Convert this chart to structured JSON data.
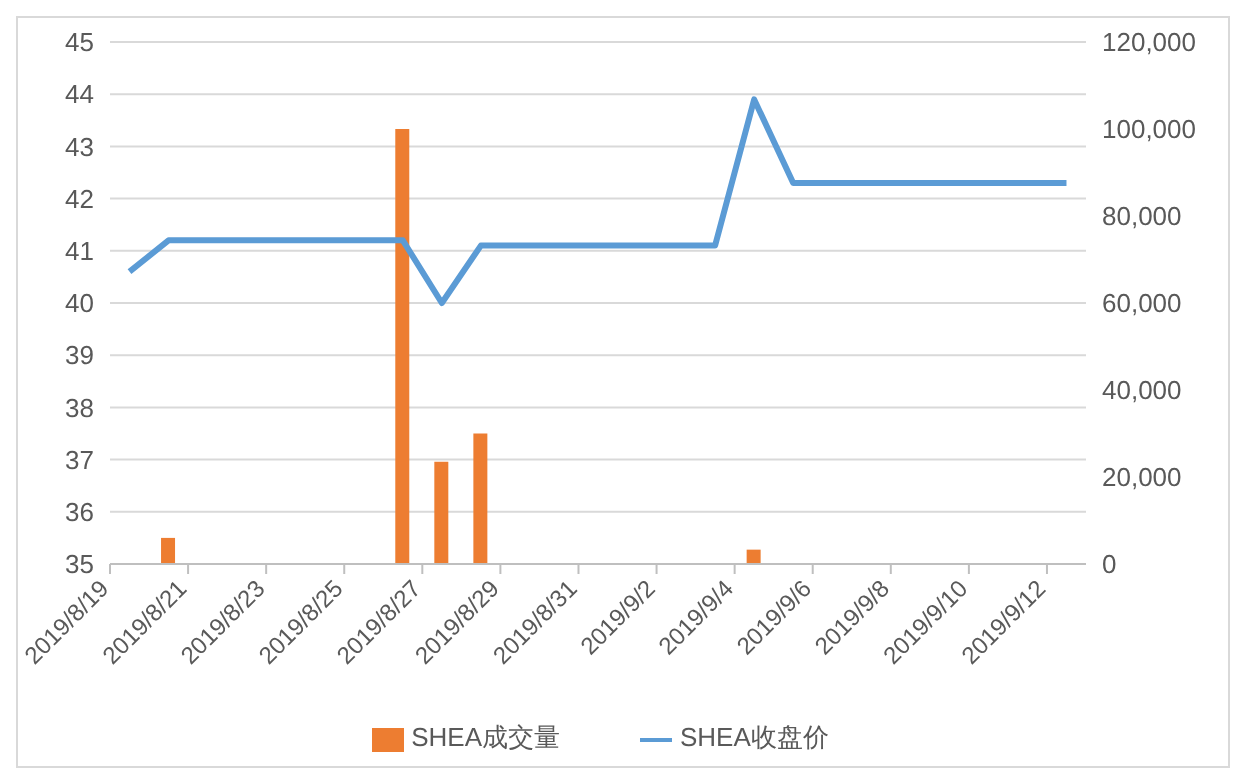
{
  "chart_data": {
    "type": "line",
    "x": [
      "2019-08-19",
      "2019-08-20",
      "2019-08-26",
      "2019-08-27",
      "2019-08-28",
      "2019-09-03",
      "2019-09-04",
      "2019-09-05",
      "2019-09-12"
    ],
    "series": [
      {
        "name": "SHEA成交量",
        "type": "bar",
        "axis": "y2",
        "color": "#ed7d31",
        "x": [
          "2019-08-20",
          "2019-08-26",
          "2019-08-27",
          "2019-08-28",
          "2019-09-04"
        ],
        "values": [
          6000,
          100000,
          23500,
          30000,
          3300
        ]
      },
      {
        "name": "SHEA收盘价",
        "axis": "y",
        "color": "#5b9bd5",
        "values": [
          40.6,
          41.2,
          41.2,
          40.0,
          41.1,
          41.1,
          43.9,
          42.3,
          42.3
        ]
      }
    ],
    "xlim": [
      "2019-08-18T12:00",
      "2019-09-12T12:00"
    ],
    "xticks": [
      {
        "value": "2019-08-18T12:00",
        "label": "2019/8/19"
      },
      {
        "value": "2019-08-20T12:00",
        "label": "2019/8/21"
      },
      {
        "value": "2019-08-22T12:00",
        "label": "2019/8/23"
      },
      {
        "value": "2019-08-24T12:00",
        "label": "2019/8/25"
      },
      {
        "value": "2019-08-26T12:00",
        "label": "2019/8/27"
      },
      {
        "value": "2019-08-28T12:00",
        "label": "2019/8/29"
      },
      {
        "value": "2019-08-30T12:00",
        "label": "2019/8/31"
      },
      {
        "value": "2019-09-01T12:00",
        "label": "2019/9/2"
      },
      {
        "value": "2019-09-03T12:00",
        "label": "2019/9/4"
      },
      {
        "value": "2019-09-05T12:00",
        "label": "2019/9/6"
      },
      {
        "value": "2019-09-07T12:00",
        "label": "2019/9/8"
      },
      {
        "value": "2019-09-09T12:00",
        "label": "2019/9/10"
      },
      {
        "value": "2019-09-11T12:00",
        "label": "2019/9/12"
      }
    ],
    "ylim": [
      35,
      45
    ],
    "yticks": [
      35,
      36,
      37,
      38,
      39,
      40,
      41,
      42,
      43,
      44,
      45
    ],
    "y2lim": [
      0,
      120000
    ],
    "y2ticks": [
      0,
      {
        "value": 20000,
        "label": "20,000"
      },
      {
        "value": 40000,
        "label": "40,000"
      },
      {
        "value": 60000,
        "label": "60,000"
      },
      {
        "value": 80000,
        "label": "80,000"
      },
      {
        "value": 100000,
        "label": "100,000"
      },
      {
        "value": 120000,
        "label": "120,000"
      }
    ],
    "grid": "y",
    "legend": "bottom",
    "marker": "none",
    "line_style": "solid"
  }
}
